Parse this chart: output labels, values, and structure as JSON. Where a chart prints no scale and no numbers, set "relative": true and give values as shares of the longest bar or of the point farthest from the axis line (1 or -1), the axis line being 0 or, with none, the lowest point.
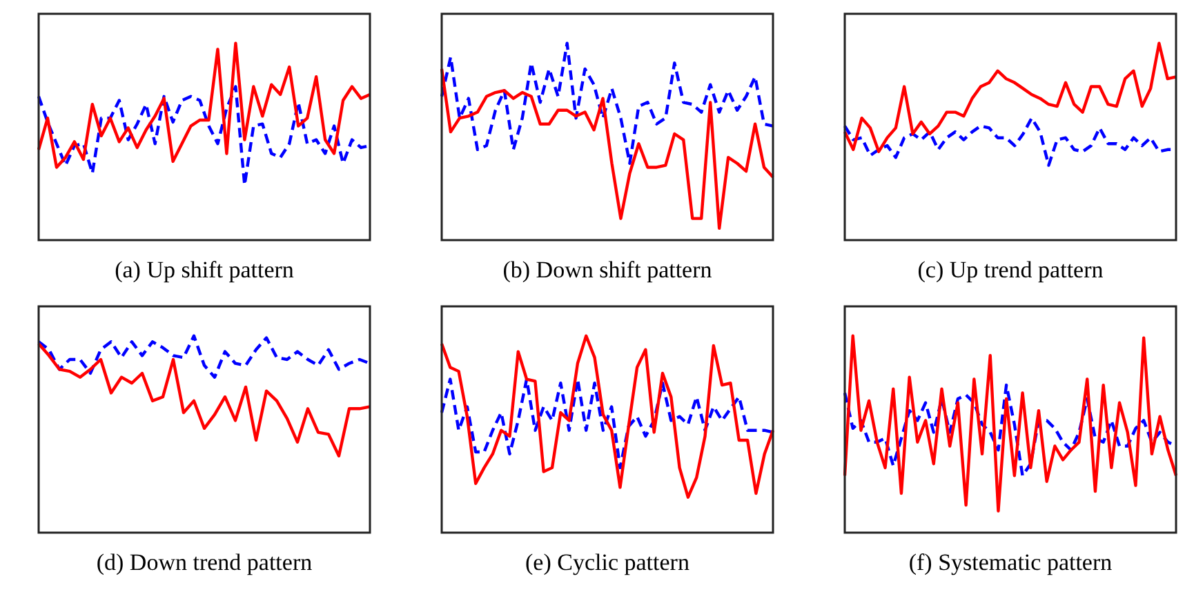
{
  "chart_data": [
    {
      "type": "line",
      "title": "(a) Up shift pattern",
      "relative": true,
      "marker": "none",
      "categories": [
        null,
        null,
        null,
        null,
        null,
        null,
        null,
        null,
        null,
        null,
        null,
        null,
        null,
        null,
        null,
        null,
        null,
        null,
        null,
        null,
        null,
        null,
        null,
        null,
        null,
        null,
        null,
        null,
        null,
        null,
        null,
        null,
        null,
        null,
        null,
        null,
        null,
        null
      ],
      "series": [
        {
          "color": "#ff0000",
          "line_style": "solid",
          "values": [
            0.46,
            0.62,
            0.37,
            0.42,
            0.5,
            0.41,
            0.69,
            0.53,
            0.62,
            0.5,
            0.57,
            0.47,
            0.56,
            0.63,
            0.72,
            0.4,
            0.49,
            0.58,
            0.61,
            0.61,
            0.97,
            0.44,
            1,
            0.51,
            0.78,
            0.63,
            0.79,
            0.74,
            0.88,
            0.58,
            0.62,
            0.83,
            0.51,
            0.44,
            0.71,
            0.78,
            0.72,
            0.74
          ]
        },
        {
          "color": "#0000ff",
          "line_style": "dashed",
          "values": [
            0.73,
            0.6,
            0.49,
            0.38,
            0.48,
            0.49,
            0.34,
            0.62,
            0.62,
            0.71,
            0.51,
            0.59,
            0.69,
            0.49,
            0.73,
            0.6,
            0.71,
            0.73,
            0.71,
            0.58,
            0.49,
            0.67,
            0.78,
            0.28,
            0.58,
            0.59,
            0.44,
            0.42,
            0.49,
            0.7,
            0.49,
            0.51,
            0.44,
            0.58,
            0.39,
            0.51,
            0.47,
            0.48
          ]
        }
      ]
    },
    {
      "type": "line",
      "title": "(b) Down shift pattern",
      "relative": true,
      "marker": "none",
      "categories": [
        null,
        null,
        null,
        null,
        null,
        null,
        null,
        null,
        null,
        null,
        null,
        null,
        null,
        null,
        null,
        null,
        null,
        null,
        null,
        null,
        null,
        null,
        null,
        null,
        null,
        null,
        null,
        null,
        null,
        null,
        null,
        null,
        null,
        null,
        null,
        null,
        null,
        null
      ],
      "series": [
        {
          "color": "#ff0000",
          "line_style": "solid",
          "values": [
            0.87,
            0.55,
            0.62,
            0.63,
            0.65,
            0.73,
            0.75,
            0.76,
            0.72,
            0.75,
            0.73,
            0.59,
            0.59,
            0.66,
            0.66,
            0.63,
            0.65,
            0.56,
            0.72,
            0.39,
            0.11,
            0.34,
            0.49,
            0.37,
            0.37,
            0.38,
            0.54,
            0.51,
            0.11,
            0.11,
            0.7,
            0.06,
            0.42,
            0.39,
            0.35,
            0.59,
            0.37,
            0.32
          ]
        },
        {
          "color": "#0000ff",
          "line_style": "dashed",
          "values": [
            0.73,
            0.93,
            0.62,
            0.72,
            0.46,
            0.48,
            0.66,
            0.76,
            0.46,
            0.62,
            0.9,
            0.7,
            0.87,
            0.73,
            1,
            0.62,
            0.87,
            0.79,
            0.62,
            0.77,
            0.62,
            0.39,
            0.68,
            0.7,
            0.59,
            0.62,
            0.9,
            0.7,
            0.69,
            0.65,
            0.79,
            0.65,
            0.76,
            0.66,
            0.73,
            0.83,
            0.59,
            0.58
          ]
        }
      ]
    },
    {
      "type": "line",
      "title": "(c) Up trend pattern",
      "relative": true,
      "marker": "none",
      "categories": [
        null,
        null,
        null,
        null,
        null,
        null,
        null,
        null,
        null,
        null,
        null,
        null,
        null,
        null,
        null,
        null,
        null,
        null,
        null,
        null,
        null,
        null,
        null,
        null,
        null,
        null,
        null,
        null,
        null,
        null,
        null,
        null,
        null,
        null,
        null,
        null,
        null,
        null,
        null,
        null
      ],
      "series": [
        {
          "color": "#ff0000",
          "line_style": "solid",
          "values": [
            0.55,
            0.46,
            0.62,
            0.57,
            0.45,
            0.52,
            0.57,
            0.78,
            0.54,
            0.6,
            0.54,
            0.58,
            0.65,
            0.65,
            0.63,
            0.72,
            0.78,
            0.8,
            0.86,
            0.82,
            0.8,
            0.77,
            0.74,
            0.72,
            0.69,
            0.68,
            0.8,
            0.69,
            0.65,
            0.78,
            0.78,
            0.69,
            0.68,
            0.82,
            0.86,
            0.68,
            0.77,
            1,
            0.82,
            0.83
          ]
        },
        {
          "color": "#0000ff",
          "line_style": "dashed",
          "values": [
            0.58,
            0.51,
            0.52,
            0.43,
            0.46,
            0.48,
            0.42,
            0.52,
            0.54,
            0.51,
            0.55,
            0.46,
            0.52,
            0.55,
            0.51,
            0.55,
            0.58,
            0.57,
            0.52,
            0.52,
            0.48,
            0.54,
            0.62,
            0.55,
            0.38,
            0.51,
            0.52,
            0.46,
            0.45,
            0.48,
            0.57,
            0.49,
            0.49,
            0.46,
            0.52,
            0.48,
            0.52,
            0.45,
            0.46,
            0.46
          ]
        }
      ]
    },
    {
      "type": "line",
      "title": "(d) Down trend pattern",
      "relative": true,
      "marker": "none",
      "categories": [
        null,
        null,
        null,
        null,
        null,
        null,
        null,
        null,
        null,
        null,
        null,
        null,
        null,
        null,
        null,
        null,
        null,
        null,
        null,
        null,
        null,
        null,
        null,
        null,
        null,
        null,
        null,
        null,
        null,
        null,
        null,
        null,
        null
      ],
      "series": [
        {
          "color": "#ff0000",
          "line_style": "solid",
          "values": [
            0.96,
            0.9,
            0.83,
            0.82,
            0.79,
            0.83,
            0.88,
            0.71,
            0.79,
            0.76,
            0.81,
            0.67,
            0.69,
            0.88,
            0.61,
            0.67,
            0.53,
            0.6,
            0.69,
            0.57,
            0.74,
            0.47,
            0.72,
            0.67,
            0.58,
            0.46,
            0.63,
            0.51,
            0.5,
            0.39,
            0.63,
            0.63,
            0.64
          ]
        },
        {
          "color": "#0000ff",
          "line_style": "dashed",
          "values": [
            0.97,
            0.93,
            0.83,
            0.88,
            0.88,
            0.81,
            0.93,
            0.97,
            0.89,
            0.97,
            0.9,
            0.97,
            0.94,
            0.9,
            0.89,
            1,
            0.85,
            0.79,
            0.92,
            0.86,
            0.85,
            0.93,
            0.99,
            0.89,
            0.88,
            0.92,
            0.88,
            0.85,
            0.93,
            0.83,
            0.86,
            0.88,
            0.86
          ]
        }
      ]
    },
    {
      "type": "line",
      "title": "(e) Cyclic pattern",
      "relative": true,
      "marker": "none",
      "categories": [
        null,
        null,
        null,
        null,
        null,
        null,
        null,
        null,
        null,
        null,
        null,
        null,
        null,
        null,
        null,
        null,
        null,
        null,
        null,
        null,
        null,
        null,
        null,
        null,
        null,
        null,
        null,
        null,
        null,
        null,
        null,
        null,
        null,
        null,
        null,
        null,
        null,
        null,
        null,
        null
      ],
      "series": [
        {
          "color": "#ff0000",
          "line_style": "solid",
          "values": [
            0.96,
            0.84,
            0.82,
            0.59,
            0.25,
            0.33,
            0.4,
            0.52,
            0.49,
            0.92,
            0.78,
            0.77,
            0.31,
            0.33,
            0.61,
            0.57,
            0.86,
            1,
            0.89,
            0.6,
            0.52,
            0.23,
            0.54,
            0.84,
            0.93,
            0.51,
            0.81,
            0.69,
            0.33,
            0.18,
            0.28,
            0.49,
            0.95,
            0.75,
            0.76,
            0.47,
            0.47,
            0.2,
            0.4,
            0.52
          ]
        },
        {
          "color": "#0000ff",
          "line_style": "dashed",
          "values": [
            0.61,
            0.78,
            0.52,
            0.64,
            0.41,
            0.41,
            0.52,
            0.61,
            0.4,
            0.57,
            0.78,
            0.52,
            0.64,
            0.57,
            0.76,
            0.52,
            0.78,
            0.52,
            0.76,
            0.52,
            0.64,
            0.33,
            0.54,
            0.59,
            0.49,
            0.57,
            0.76,
            0.57,
            0.59,
            0.55,
            0.69,
            0.52,
            0.64,
            0.57,
            0.63,
            0.69,
            0.52,
            0.52,
            0.52,
            0.51
          ]
        }
      ]
    },
    {
      "type": "line",
      "title": "(f) Systematic pattern",
      "relative": true,
      "marker": "none",
      "categories": [
        null,
        null,
        null,
        null,
        null,
        null,
        null,
        null,
        null,
        null,
        null,
        null,
        null,
        null,
        null,
        null,
        null,
        null,
        null,
        null,
        null,
        null,
        null,
        null,
        null,
        null,
        null,
        null,
        null,
        null,
        null,
        null,
        null,
        null,
        null,
        null,
        null,
        null,
        null,
        null,
        null,
        null
      ],
      "series": [
        {
          "color": "#ff0000",
          "line_style": "solid",
          "values": [
            0.29,
            1,
            0.52,
            0.67,
            0.46,
            0.33,
            0.73,
            0.2,
            0.79,
            0.46,
            0.57,
            0.35,
            0.73,
            0.44,
            0.66,
            0.14,
            0.78,
            0.4,
            0.9,
            0.11,
            0.68,
            0.29,
            0.71,
            0.33,
            0.62,
            0.26,
            0.44,
            0.37,
            0.42,
            0.46,
            0.78,
            0.21,
            0.75,
            0.33,
            0.66,
            0.51,
            0.24,
            0.99,
            0.4,
            0.59,
            0.42,
            0.29
          ]
        },
        {
          "color": "#0000ff",
          "line_style": "dashed",
          "values": [
            0.71,
            0.53,
            0.57,
            0.46,
            0.46,
            0.48,
            0.34,
            0.48,
            0.62,
            0.57,
            0.66,
            0.51,
            0.68,
            0.51,
            0.68,
            0.7,
            0.66,
            0.55,
            0.51,
            0.42,
            0.75,
            0.55,
            0.29,
            0.35,
            0.57,
            0.57,
            0.53,
            0.46,
            0.42,
            0.51,
            0.68,
            0.48,
            0.46,
            0.57,
            0.44,
            0.44,
            0.53,
            0.57,
            0.46,
            0.51,
            0.46,
            0.44
          ]
        }
      ]
    }
  ]
}
